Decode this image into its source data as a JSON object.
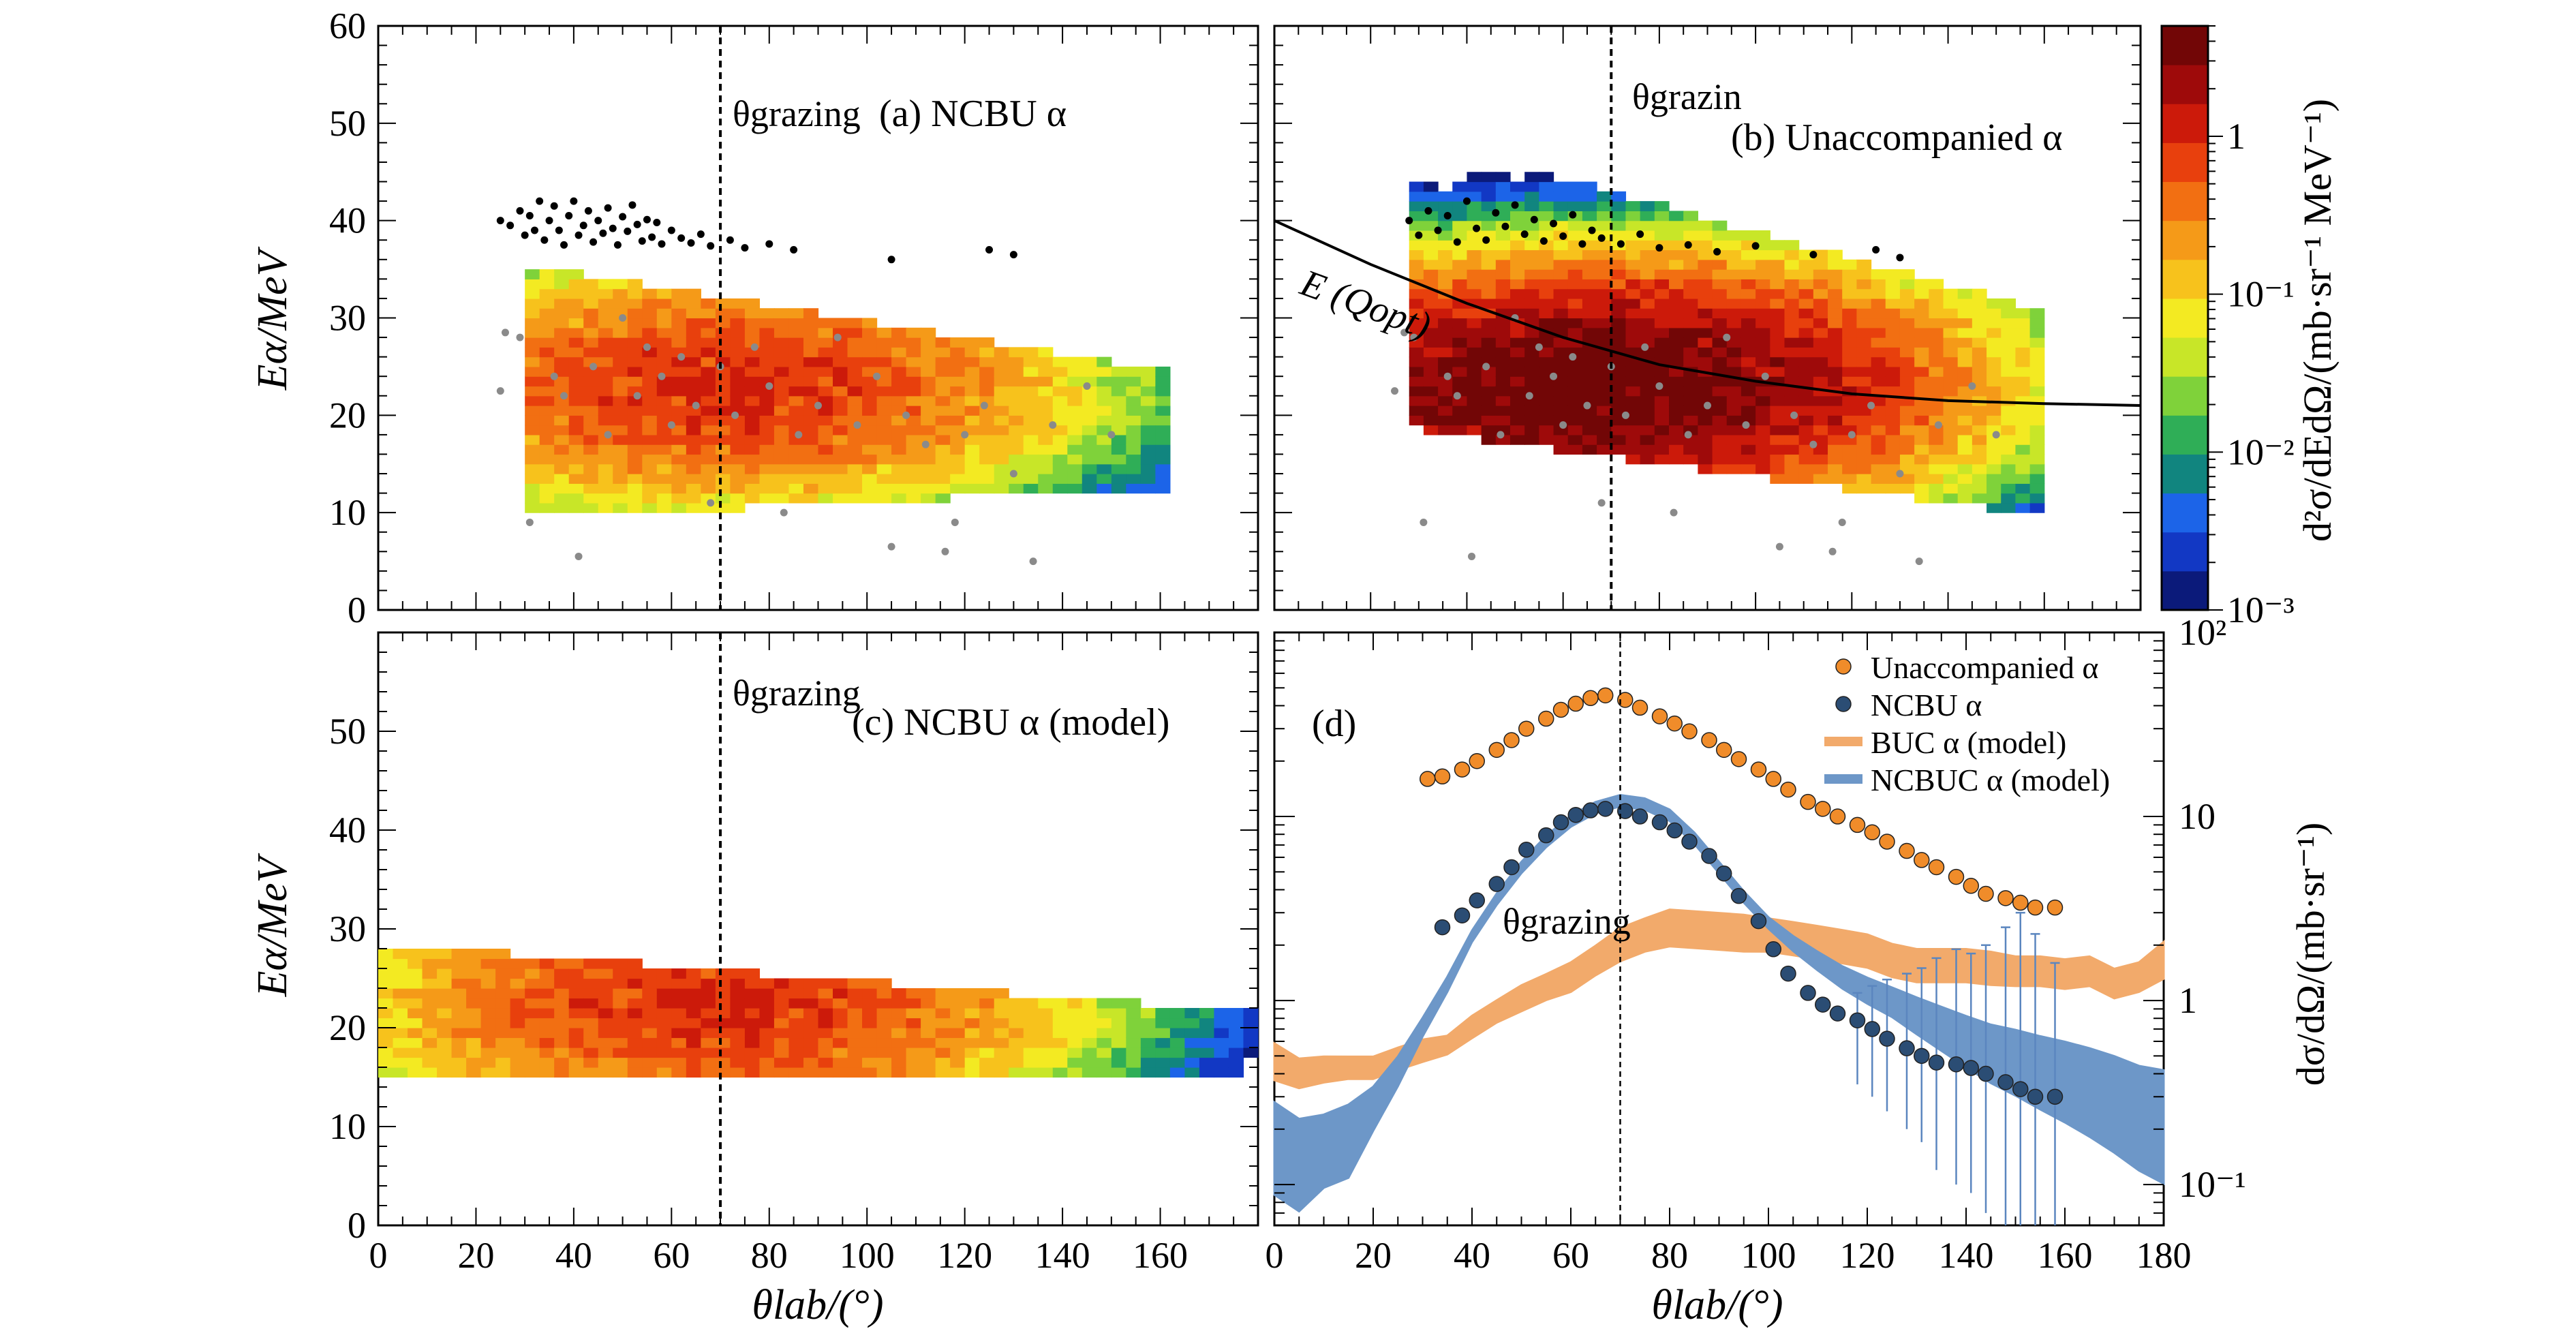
{
  "figure": {
    "xlabel": "θlab/(°)",
    "ylabel_energy": "Eα/MeV",
    "grazing_label": "θgrazing",
    "grazing_label_b": "θgrazin",
    "grazing_angle": 70
  },
  "colorbar": {
    "label": "d²σ/dEdΩ/(mb·sr⁻¹ MeV⁻¹)",
    "tick_labels": [
      "10⁻³",
      "10⁻²",
      "10⁻¹",
      "1"
    ],
    "range": [
      0.001,
      5
    ],
    "colors": [
      "#0b1a7a",
      "#1238c4",
      "#1c64e8",
      "#11857f",
      "#2fae57",
      "#7fd23a",
      "#c8e628",
      "#f3ea22",
      "#f7c21c",
      "#f59a18",
      "#f26f12",
      "#e8400d",
      "#cc1a0a",
      "#9e0a0a",
      "#720606"
    ]
  },
  "right_axis": {
    "label": "dσ/dΩ/(mb·sr⁻¹)",
    "tick_labels": [
      "10²",
      "10",
      "1",
      "10⁻¹"
    ]
  },
  "chart_data": [
    {
      "panel": "a",
      "type": "heatmap",
      "title": "(a) NCBU α",
      "xlim": [
        0,
        180
      ],
      "ylim": [
        0,
        60
      ],
      "x_ticks": [
        "0",
        "20",
        "40",
        "60",
        "80",
        "100",
        "120",
        "140",
        "160"
      ],
      "y_ticks": [
        "0",
        "10",
        "20",
        "30",
        "40",
        "50",
        "60"
      ],
      "heatmap": {
        "x_range": [
          30,
          160
        ],
        "e_min_lo": 10,
        "e_min_hi": 13,
        "e_max_lo": 35,
        "e_max_hi": 24,
        "peak_angle": 70,
        "peak_energy": 23,
        "peak_value": 1.0
      },
      "black_points": [
        [
          25,
          40
        ],
        [
          27,
          39.5
        ],
        [
          29,
          41
        ],
        [
          30,
          38.5
        ],
        [
          31,
          40.5
        ],
        [
          32,
          39
        ],
        [
          33,
          42
        ],
        [
          34,
          38
        ],
        [
          35,
          40
        ],
        [
          36,
          41.5
        ],
        [
          37,
          39
        ],
        [
          38,
          37.5
        ],
        [
          39,
          40.5
        ],
        [
          40,
          42
        ],
        [
          41,
          38.5
        ],
        [
          42,
          39.5
        ],
        [
          43,
          41
        ],
        [
          44,
          37.8
        ],
        [
          45,
          40
        ],
        [
          46,
          38.7
        ],
        [
          47,
          41.3
        ],
        [
          48,
          39.2
        ],
        [
          49,
          37.5
        ],
        [
          50,
          40.4
        ],
        [
          51,
          38.9
        ],
        [
          52,
          41.6
        ],
        [
          53,
          39.6
        ],
        [
          54,
          37.9
        ],
        [
          55,
          40.1
        ],
        [
          56,
          38.3
        ],
        [
          57,
          39.8
        ],
        [
          58,
          37.6
        ],
        [
          60,
          39
        ],
        [
          62,
          38.2
        ],
        [
          64,
          37.7
        ],
        [
          66,
          38.6
        ],
        [
          68,
          37.4
        ],
        [
          72,
          38
        ],
        [
          75,
          37.2
        ],
        [
          80,
          37.6
        ],
        [
          85,
          37
        ],
        [
          105,
          36
        ],
        [
          125,
          37
        ],
        [
          130,
          36.5
        ]
      ],
      "grey_points": [
        [
          25,
          22.5
        ],
        [
          26,
          28.5
        ],
        [
          29,
          28
        ],
        [
          31,
          9
        ],
        [
          36,
          24
        ],
        [
          38,
          22
        ],
        [
          41,
          5.5
        ],
        [
          44,
          25
        ],
        [
          47,
          18
        ],
        [
          50,
          30
        ],
        [
          53,
          22
        ],
        [
          55,
          27
        ],
        [
          58,
          24
        ],
        [
          60,
          19
        ],
        [
          62,
          26
        ],
        [
          65,
          21
        ],
        [
          68,
          11
        ],
        [
          70,
          25
        ],
        [
          73,
          20
        ],
        [
          77,
          27
        ],
        [
          80,
          23
        ],
        [
          83,
          10
        ],
        [
          86,
          18
        ],
        [
          90,
          21
        ],
        [
          94,
          28
        ],
        [
          98,
          19
        ],
        [
          102,
          24
        ],
        [
          105,
          6.5
        ],
        [
          108,
          20
        ],
        [
          112,
          17
        ],
        [
          116,
          6
        ],
        [
          118,
          9
        ],
        [
          120,
          18
        ],
        [
          124,
          21
        ],
        [
          130,
          14
        ],
        [
          134,
          5
        ],
        [
          138,
          19
        ],
        [
          145,
          23
        ],
        [
          150,
          18
        ]
      ]
    },
    {
      "panel": "b",
      "type": "heatmap",
      "title": "(b) Unaccompanied α",
      "xlim": [
        0,
        180
      ],
      "ylim": [
        0,
        60
      ],
      "x_ticks": [],
      "y_ticks": [],
      "heatmap": {
        "x_range": [
          28,
          160
        ],
        "e_min_lo": 19,
        "e_min_hi": 10,
        "e_max_lo": 48,
        "e_max_hi": 30,
        "peak_angle": 65,
        "peak_energy": 23,
        "peak_value": 5.0
      },
      "curve_label": "E (Qopt)",
      "curve": [
        [
          0,
          40
        ],
        [
          20,
          35.5
        ],
        [
          40,
          31.5
        ],
        [
          60,
          28
        ],
        [
          80,
          25.2
        ],
        [
          100,
          23.5
        ],
        [
          120,
          22.2
        ],
        [
          140,
          21.5
        ],
        [
          160,
          21.2
        ],
        [
          180,
          21
        ]
      ],
      "black_points": [
        [
          28,
          40
        ],
        [
          30,
          38.5
        ],
        [
          32,
          41
        ],
        [
          34,
          39
        ],
        [
          36,
          40.5
        ],
        [
          38,
          37.8
        ],
        [
          40,
          42
        ],
        [
          42,
          39.2
        ],
        [
          44,
          38
        ],
        [
          46,
          40.8
        ],
        [
          48,
          39.4
        ],
        [
          50,
          41.6
        ],
        [
          52,
          38.6
        ],
        [
          54,
          40.1
        ],
        [
          56,
          37.9
        ],
        [
          58,
          39.7
        ],
        [
          60,
          38.4
        ],
        [
          62,
          40.6
        ],
        [
          64,
          37.6
        ],
        [
          66,
          39
        ],
        [
          68,
          38.2
        ],
        [
          72,
          37.6
        ],
        [
          76,
          38.6
        ],
        [
          80,
          37.2
        ],
        [
          86,
          37.5
        ],
        [
          92,
          36.8
        ],
        [
          100,
          37.4
        ],
        [
          112,
          36.5
        ],
        [
          125,
          37
        ],
        [
          130,
          36.2
        ]
      ],
      "grey_points": [
        [
          25,
          22.5
        ],
        [
          27,
          28.5
        ],
        [
          29,
          28
        ],
        [
          31,
          9
        ],
        [
          36,
          24
        ],
        [
          38,
          22
        ],
        [
          41,
          5.5
        ],
        [
          44,
          25
        ],
        [
          47,
          18
        ],
        [
          50,
          30
        ],
        [
          53,
          22
        ],
        [
          55,
          27
        ],
        [
          58,
          24
        ],
        [
          60,
          19
        ],
        [
          62,
          26
        ],
        [
          65,
          21
        ],
        [
          68,
          11
        ],
        [
          70,
          25
        ],
        [
          73,
          20
        ],
        [
          77,
          27
        ],
        [
          80,
          23
        ],
        [
          83,
          10
        ],
        [
          86,
          18
        ],
        [
          90,
          21
        ],
        [
          94,
          28
        ],
        [
          98,
          19
        ],
        [
          102,
          24
        ],
        [
          105,
          6.5
        ],
        [
          108,
          20
        ],
        [
          112,
          17
        ],
        [
          116,
          6
        ],
        [
          118,
          9
        ],
        [
          120,
          18
        ],
        [
          124,
          21
        ],
        [
          130,
          14
        ],
        [
          134,
          5
        ],
        [
          138,
          19
        ],
        [
          145,
          23
        ],
        [
          150,
          18
        ]
      ]
    },
    {
      "panel": "c",
      "type": "heatmap",
      "title": "(c) NCBU α (model)",
      "xlim": [
        0,
        180
      ],
      "ylim": [
        0,
        60
      ],
      "x_ticks": [
        "0",
        "20",
        "40",
        "60",
        "80",
        "100",
        "120",
        "140",
        "160"
      ],
      "y_ticks": [
        "0",
        "10",
        "20",
        "30",
        "40",
        "50"
      ],
      "heatmap": {
        "x_range": [
          0,
          180
        ],
        "e_min_lo": 15,
        "e_min_hi": 16,
        "e_max_lo": 28,
        "e_max_hi": 21,
        "peak_angle": 68,
        "peak_energy": 22.5,
        "peak_value": 1.0
      },
      "black_points": [],
      "grey_points": []
    },
    {
      "panel": "d",
      "type": "line",
      "title": "(d)",
      "xlim": [
        0,
        180
      ],
      "ylim_log": [
        0.06,
        100
      ],
      "x_ticks": [
        "0",
        "20",
        "40",
        "60",
        "80",
        "100",
        "120",
        "140",
        "160",
        "180"
      ],
      "series": [
        {
          "name": "Unaccompanied α",
          "kind": "points",
          "color": "#f08c2a",
          "x": [
            31,
            34,
            38,
            41,
            45,
            48,
            51,
            55,
            58,
            61,
            64,
            67,
            71,
            74,
            78,
            81,
            84,
            88,
            91,
            94,
            98,
            101,
            104,
            108,
            111,
            114,
            118,
            121,
            124,
            128,
            131,
            134,
            138,
            141,
            144,
            148,
            151,
            154,
            158
          ],
          "y": [
            16,
            16.5,
            18,
            20,
            23,
            26,
            30,
            34,
            38,
            41,
            44,
            45.5,
            43,
            39,
            35,
            32,
            29,
            26,
            23,
            20.5,
            18,
            16,
            14,
            12,
            11,
            10,
            9,
            8.2,
            7.3,
            6.5,
            5.8,
            5.3,
            4.7,
            4.2,
            3.8,
            3.6,
            3.4,
            3.2,
            3.2
          ]
        },
        {
          "name": "NCBU α",
          "kind": "points",
          "color": "#2b4d74",
          "x": [
            34,
            38,
            41,
            45,
            48,
            51,
            55,
            58,
            61,
            64,
            67,
            71,
            74,
            78,
            81,
            84,
            88,
            91,
            94,
            98,
            101,
            104,
            108,
            111,
            114,
            118,
            121,
            124,
            128,
            131,
            134,
            138,
            141,
            144,
            148,
            151,
            154,
            158
          ],
          "y": [
            2.5,
            2.9,
            3.5,
            4.3,
            5.3,
            6.6,
            7.9,
            9.3,
            10.2,
            10.8,
            11,
            10.7,
            10,
            9.3,
            8.4,
            7.3,
            6.1,
            4.9,
            3.7,
            2.7,
            1.9,
            1.4,
            1.1,
            0.95,
            0.85,
            0.78,
            0.7,
            0.62,
            0.55,
            0.5,
            0.46,
            0.45,
            0.43,
            0.4,
            0.36,
            0.33,
            0.3,
            0.3
          ]
        },
        {
          "name": "BUC α (model)",
          "kind": "band",
          "color": "#f2aa6b",
          "x": [
            0,
            5,
            10,
            15,
            20,
            25,
            30,
            35,
            40,
            45,
            50,
            55,
            60,
            65,
            70,
            75,
            80,
            85,
            90,
            95,
            100,
            105,
            110,
            115,
            120,
            125,
            130,
            135,
            140,
            145,
            150,
            155,
            160,
            165,
            170,
            175,
            180
          ],
          "y": [
            0.45,
            0.39,
            0.41,
            0.42,
            0.42,
            0.47,
            0.52,
            0.56,
            0.7,
            0.85,
            1.0,
            1.15,
            1.3,
            1.6,
            1.95,
            2.2,
            2.4,
            2.35,
            2.3,
            2.25,
            2.2,
            2.1,
            2.0,
            1.9,
            1.8,
            1.6,
            1.5,
            1.5,
            1.5,
            1.45,
            1.4,
            1.4,
            1.35,
            1.4,
            1.2,
            1.3,
            1.6
          ],
          "width": [
            0.1,
            0.08,
            0.07,
            0.06,
            0.06,
            0.06,
            0.06,
            0.05,
            0.06,
            0.06,
            0.07,
            0.07,
            0.08,
            0.08,
            0.09,
            0.09,
            0.1,
            0.1,
            0.1,
            0.1,
            0.09,
            0.09,
            0.09,
            0.09,
            0.09,
            0.09,
            0.09,
            0.09,
            0.09,
            0.09,
            0.08,
            0.08,
            0.08,
            0.08,
            0.08,
            0.08,
            0.1
          ]
        },
        {
          "name": "NCBUC α (model)",
          "kind": "band",
          "color": "#6d97c8",
          "x": [
            0,
            5,
            10,
            15,
            20,
            25,
            30,
            35,
            40,
            45,
            50,
            55,
            60,
            65,
            70,
            75,
            80,
            85,
            90,
            95,
            100,
            105,
            110,
            115,
            120,
            125,
            130,
            135,
            140,
            145,
            150,
            155,
            160,
            165,
            170,
            175,
            180
          ],
          "y": [
            0.16,
            0.13,
            0.15,
            0.17,
            0.25,
            0.4,
            0.7,
            1.2,
            2.2,
            3.5,
            5.2,
            7.2,
            9.3,
            11,
            12,
            11.5,
            10,
            7.5,
            5.2,
            3.6,
            2.6,
            2.0,
            1.6,
            1.3,
            1.1,
            0.95,
            0.8,
            0.68,
            0.58,
            0.5,
            0.45,
            0.4,
            0.36,
            0.32,
            0.28,
            0.24,
            0.22
          ],
          "width": [
            0.25,
            0.25,
            0.2,
            0.2,
            0.12,
            0.08,
            0.05,
            0.04,
            0.03,
            0.03,
            0.03,
            0.03,
            0.03,
            0.03,
            0.03,
            0.03,
            0.03,
            0.03,
            0.03,
            0.03,
            0.03,
            0.04,
            0.05,
            0.06,
            0.07,
            0.08,
            0.1,
            0.12,
            0.14,
            0.16,
            0.18,
            0.2,
            0.22,
            0.24,
            0.26,
            0.28,
            0.3
          ]
        }
      ],
      "error_bars": [
        [
          118,
          0.35,
          1.1
        ],
        [
          121,
          0.3,
          1.2
        ],
        [
          124,
          0.25,
          1.3
        ],
        [
          128,
          0.2,
          1.4
        ],
        [
          131,
          0.17,
          1.5
        ],
        [
          134,
          0.12,
          1.7
        ],
        [
          138,
          0.1,
          1.9
        ],
        [
          141,
          0.09,
          1.8
        ],
        [
          144,
          0.07,
          2.0
        ],
        [
          148,
          0.06,
          2.5
        ],
        [
          151,
          0.06,
          3.0
        ],
        [
          154,
          0.06,
          2.3
        ],
        [
          158,
          0.06,
          1.6
        ]
      ]
    }
  ]
}
